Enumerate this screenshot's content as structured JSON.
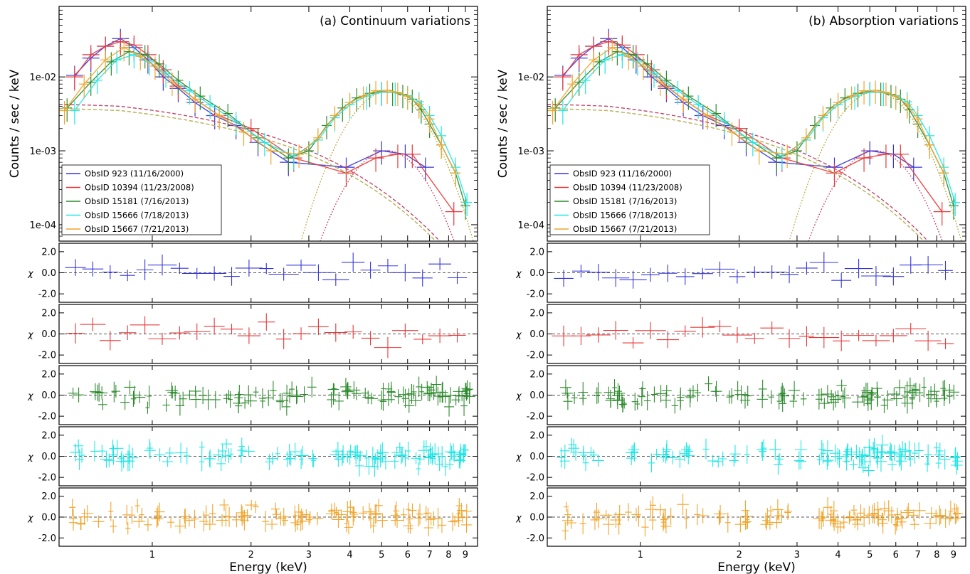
{
  "x_axis": {
    "label": "Energy (keV)",
    "ticks": [
      1,
      2,
      3,
      4,
      5,
      6,
      7,
      8,
      9
    ],
    "tick_labels": [
      "1",
      "2",
      "3",
      "4",
      "5",
      "6",
      "7",
      "8",
      "9"
    ],
    "range": [
      0.52,
      9.8
    ],
    "scale": "log"
  },
  "y_axis": {
    "label": "Counts / sec / keV",
    "ticks": [
      0.0001,
      0.001,
      0.01
    ],
    "tick_labels": [
      "1e-04",
      "1e-03",
      "1e-02"
    ],
    "range": [
      6e-05,
      0.09
    ],
    "scale": "log"
  },
  "resid_axis": {
    "label": "χ",
    "ticks": [
      2.0,
      0.0,
      -2.0
    ],
    "tick_labels": [
      "2.0",
      "0.0",
      "-2.0"
    ],
    "range": [
      -2.8,
      2.8
    ]
  },
  "colors": {
    "ObsID 923": "#3535e0",
    "ObsID 10394": "#e83838",
    "ObsID 15181": "#2c8a2c",
    "ObsID 15666": "#20e6e6",
    "ObsID 15667": "#f2a42a"
  },
  "chart_data": [
    {
      "type": "scatter",
      "title": "(a) Continuum variations",
      "xlabel": "Energy (keV)",
      "ylabel": "Counts / sec / keV",
      "legend_placement": "lower-left",
      "series": [
        {
          "name": "ObsID 923 (11/16/2000)",
          "x": [
            0.58,
            0.65,
            0.72,
            0.8,
            0.88,
            0.97,
            1.08,
            1.2,
            1.35,
            1.55,
            1.8,
            2.1,
            2.6,
            3.9,
            5.0,
            5.9,
            6.8
          ],
          "y": [
            0.0105,
            0.018,
            0.026,
            0.033,
            0.025,
            0.017,
            0.01,
            0.007,
            0.0045,
            0.003,
            0.0022,
            0.0013,
            0.0007,
            0.0006,
            0.001,
            0.0009,
            0.0006
          ]
        },
        {
          "name": "ObsID 10394 (11/23/2008)",
          "x": [
            0.58,
            0.65,
            0.72,
            0.8,
            0.88,
            0.97,
            1.08,
            1.2,
            1.35,
            1.6,
            2.0,
            2.7,
            3.9,
            4.8,
            5.6,
            6.2,
            8.3
          ],
          "y": [
            0.01,
            0.02,
            0.026,
            0.03,
            0.027,
            0.02,
            0.0125,
            0.0075,
            0.005,
            0.003,
            0.002,
            0.0008,
            0.0005,
            0.0008,
            0.0009,
            0.0009,
            0.00015
          ]
        },
        {
          "name": "ObsID 15181 (7/16/2013)",
          "x": [
            0.55,
            0.65,
            0.75,
            0.85,
            0.95,
            1.05,
            1.2,
            1.4,
            1.7,
            2.1,
            2.6,
            3.0,
            3.4,
            3.8,
            4.2,
            4.6,
            5.0,
            5.4,
            5.8,
            6.2,
            6.6,
            7.0,
            7.6,
            8.4,
            9.0
          ],
          "y": [
            0.0038,
            0.0085,
            0.016,
            0.022,
            0.02,
            0.015,
            0.009,
            0.0055,
            0.0032,
            0.0015,
            0.0008,
            0.001,
            0.0022,
            0.0038,
            0.0052,
            0.006,
            0.0063,
            0.0062,
            0.0058,
            0.005,
            0.0036,
            0.0023,
            0.0012,
            0.0005,
            0.00018
          ]
        },
        {
          "name": "ObsID 15666 (7/18/2013)",
          "x": [
            0.58,
            0.68,
            0.78,
            0.88,
            0.98,
            1.1,
            1.3,
            1.5,
            1.8,
            2.2,
            2.7,
            3.2,
            3.6,
            4.0,
            4.5,
            5.0,
            5.5,
            6.0,
            6.5,
            7.0,
            7.6,
            8.4,
            9.1
          ],
          "y": [
            0.0035,
            0.009,
            0.017,
            0.02,
            0.016,
            0.011,
            0.0065,
            0.0042,
            0.0025,
            0.0013,
            0.00085,
            0.0014,
            0.0028,
            0.0042,
            0.0055,
            0.0062,
            0.0062,
            0.0056,
            0.0046,
            0.003,
            0.0016,
            0.0006,
            0.0002
          ]
        },
        {
          "name": "ObsID 15667 (7/21/2013)",
          "x": [
            0.54,
            0.62,
            0.72,
            0.82,
            0.92,
            1.02,
            1.15,
            1.35,
            1.6,
            1.9,
            2.3,
            2.8,
            3.2,
            3.6,
            4.0,
            4.4,
            4.8,
            5.2,
            5.6,
            6.0,
            6.5,
            7.0,
            7.6,
            8.4
          ],
          "y": [
            0.0035,
            0.008,
            0.017,
            0.025,
            0.019,
            0.014,
            0.0085,
            0.005,
            0.003,
            0.0018,
            0.001,
            0.0009,
            0.0015,
            0.003,
            0.0045,
            0.0055,
            0.0065,
            0.0066,
            0.0062,
            0.0055,
            0.0042,
            0.0027,
            0.0012,
            0.0005
          ]
        }
      ]
    },
    {
      "type": "scatter",
      "title": "(b) Absorption variations",
      "xlabel": "Energy (keV)",
      "ylabel": "Counts / sec / keV",
      "legend_placement": "lower-left",
      "series": [
        {
          "name": "ObsID 923 (11/16/2000)",
          "x": [
            0.58,
            0.65,
            0.72,
            0.8,
            0.88,
            0.97,
            1.08,
            1.2,
            1.35,
            1.55,
            1.8,
            2.1,
            2.6,
            3.9,
            5.0,
            5.9,
            6.8
          ],
          "y": [
            0.0105,
            0.018,
            0.026,
            0.033,
            0.025,
            0.017,
            0.01,
            0.007,
            0.0045,
            0.003,
            0.0022,
            0.0013,
            0.0007,
            0.0006,
            0.001,
            0.0009,
            0.0006
          ]
        },
        {
          "name": "ObsID 10394 (11/23/2008)",
          "x": [
            0.58,
            0.65,
            0.72,
            0.8,
            0.88,
            0.97,
            1.08,
            1.2,
            1.35,
            1.6,
            2.0,
            2.7,
            3.9,
            4.8,
            5.6,
            6.2,
            8.3
          ],
          "y": [
            0.01,
            0.02,
            0.026,
            0.03,
            0.027,
            0.02,
            0.0125,
            0.0075,
            0.005,
            0.003,
            0.002,
            0.0008,
            0.0005,
            0.0008,
            0.0009,
            0.0009,
            0.00015
          ]
        },
        {
          "name": "ObsID 15181 (7/16/2013)",
          "x": [
            0.55,
            0.65,
            0.75,
            0.85,
            0.95,
            1.05,
            1.2,
            1.4,
            1.7,
            2.1,
            2.6,
            3.0,
            3.4,
            3.8,
            4.2,
            4.6,
            5.0,
            5.4,
            5.8,
            6.2,
            6.6,
            7.0,
            7.6,
            8.4,
            9.0
          ],
          "y": [
            0.0038,
            0.0085,
            0.016,
            0.022,
            0.02,
            0.015,
            0.009,
            0.0055,
            0.0032,
            0.0015,
            0.0008,
            0.001,
            0.0022,
            0.0038,
            0.0052,
            0.006,
            0.0063,
            0.0062,
            0.0058,
            0.005,
            0.0036,
            0.0023,
            0.0012,
            0.0005,
            0.00018
          ]
        },
        {
          "name": "ObsID 15666 (7/18/2013)",
          "x": [
            0.58,
            0.68,
            0.78,
            0.88,
            0.98,
            1.1,
            1.3,
            1.5,
            1.8,
            2.2,
            2.7,
            3.2,
            3.6,
            4.0,
            4.5,
            5.0,
            5.5,
            6.0,
            6.5,
            7.0,
            7.6,
            8.4,
            9.1
          ],
          "y": [
            0.0035,
            0.009,
            0.017,
            0.02,
            0.016,
            0.011,
            0.0065,
            0.0042,
            0.0025,
            0.0013,
            0.00085,
            0.0014,
            0.0028,
            0.0042,
            0.0055,
            0.0062,
            0.0062,
            0.0056,
            0.0046,
            0.003,
            0.0016,
            0.0006,
            0.0002
          ]
        },
        {
          "name": "ObsID 15667 (7/21/2013)",
          "x": [
            0.54,
            0.62,
            0.72,
            0.82,
            0.92,
            1.02,
            1.15,
            1.35,
            1.6,
            1.9,
            2.3,
            2.8,
            3.2,
            3.6,
            4.0,
            4.4,
            4.8,
            5.2,
            5.6,
            6.0,
            6.5,
            7.0,
            7.6,
            8.4
          ],
          "y": [
            0.0035,
            0.008,
            0.017,
            0.025,
            0.019,
            0.014,
            0.0085,
            0.005,
            0.003,
            0.0018,
            0.001,
            0.0009,
            0.0015,
            0.003,
            0.0045,
            0.0055,
            0.0065,
            0.0066,
            0.0062,
            0.0055,
            0.0042,
            0.0027,
            0.0012,
            0.0005
          ]
        }
      ]
    }
  ]
}
